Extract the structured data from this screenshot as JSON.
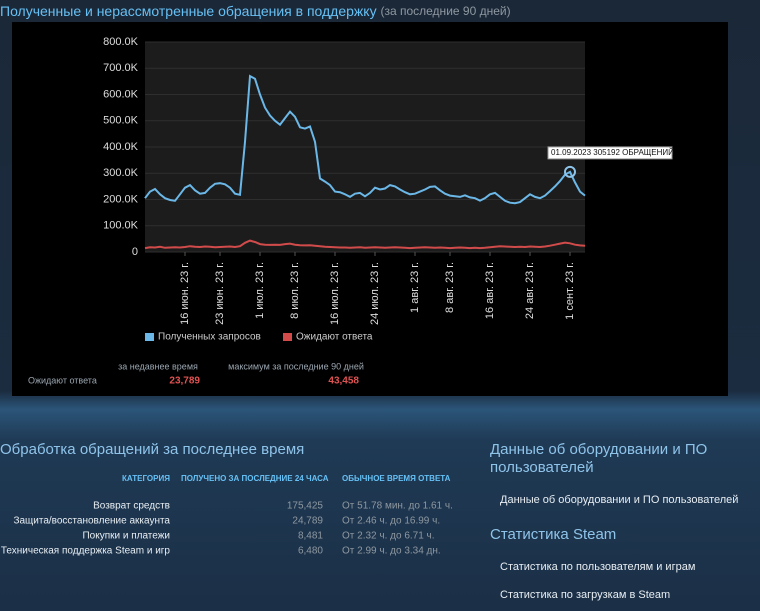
{
  "header": {
    "title": "Полученные и нерассмотренные обращения в поддержку",
    "subtitle": "(за последние 90 дней)"
  },
  "chart_data": {
    "type": "line",
    "x": [
      "2023-06-08",
      "2023-06-09",
      "2023-06-10",
      "2023-06-11",
      "2023-06-12",
      "2023-06-13",
      "2023-06-14",
      "2023-06-15",
      "2023-06-16",
      "2023-06-17",
      "2023-06-18",
      "2023-06-19",
      "2023-06-20",
      "2023-06-21",
      "2023-06-22",
      "2023-06-23",
      "2023-06-24",
      "2023-06-25",
      "2023-06-26",
      "2023-06-27",
      "2023-06-28",
      "2023-06-29",
      "2023-06-30",
      "2023-07-01",
      "2023-07-02",
      "2023-07-03",
      "2023-07-04",
      "2023-07-05",
      "2023-07-06",
      "2023-07-07",
      "2023-07-08",
      "2023-07-09",
      "2023-07-10",
      "2023-07-11",
      "2023-07-12",
      "2023-07-13",
      "2023-07-14",
      "2023-07-15",
      "2023-07-16",
      "2023-07-17",
      "2023-07-18",
      "2023-07-19",
      "2023-07-20",
      "2023-07-21",
      "2023-07-22",
      "2023-07-23",
      "2023-07-24",
      "2023-07-25",
      "2023-07-26",
      "2023-07-27",
      "2023-07-28",
      "2023-07-29",
      "2023-07-30",
      "2023-07-31",
      "2023-08-01",
      "2023-08-02",
      "2023-08-03",
      "2023-08-04",
      "2023-08-05",
      "2023-08-06",
      "2023-08-07",
      "2023-08-08",
      "2023-08-09",
      "2023-08-10",
      "2023-08-11",
      "2023-08-12",
      "2023-08-13",
      "2023-08-14",
      "2023-08-15",
      "2023-08-16",
      "2023-08-17",
      "2023-08-18",
      "2023-08-19",
      "2023-08-20",
      "2023-08-21",
      "2023-08-22",
      "2023-08-23",
      "2023-08-24",
      "2023-08-25",
      "2023-08-26",
      "2023-08-27",
      "2023-08-28",
      "2023-08-29",
      "2023-08-30",
      "2023-08-31",
      "2023-09-01",
      "2023-09-02",
      "2023-09-03",
      "2023-09-04"
    ],
    "series": [
      {
        "name": "Полученных запросов",
        "color": "#6bb8e8",
        "values": [
          205000,
          230000,
          240000,
          220000,
          205000,
          198000,
          195000,
          220000,
          245000,
          255000,
          235000,
          222000,
          225000,
          245000,
          260000,
          262000,
          258000,
          245000,
          222000,
          218000,
          420000,
          670000,
          660000,
          600000,
          550000,
          520000,
          500000,
          485000,
          510000,
          535000,
          515000,
          475000,
          470000,
          478000,
          420000,
          280000,
          268000,
          255000,
          230000,
          228000,
          220000,
          210000,
          222000,
          225000,
          212000,
          225000,
          245000,
          238000,
          242000,
          255000,
          250000,
          238000,
          228000,
          220000,
          222000,
          230000,
          238000,
          248000,
          250000,
          235000,
          222000,
          215000,
          212000,
          210000,
          216000,
          208000,
          205000,
          196000,
          205000,
          220000,
          225000,
          210000,
          195000,
          188000,
          186000,
          190000,
          205000,
          220000,
          210000,
          205000,
          215000,
          232000,
          250000,
          270000,
          295000,
          305192,
          265000,
          230000,
          215000
        ]
      },
      {
        "name": "Ожидают ответа",
        "color": "#d24b4b",
        "values": [
          15000,
          18000,
          17000,
          20000,
          16000,
          17000,
          18000,
          17000,
          19000,
          22000,
          20000,
          19000,
          21000,
          20000,
          18000,
          19000,
          20000,
          21000,
          19000,
          22000,
          35000,
          43458,
          38000,
          30000,
          28000,
          27000,
          28000,
          27000,
          30000,
          32000,
          28000,
          26000,
          25000,
          26000,
          24000,
          22000,
          20000,
          19000,
          18000,
          17000,
          17000,
          16000,
          17000,
          18000,
          16000,
          17000,
          18000,
          17000,
          16000,
          17000,
          18000,
          17000,
          16000,
          15000,
          16000,
          17000,
          18000,
          17000,
          16000,
          17000,
          16000,
          15000,
          16000,
          17000,
          16000,
          15000,
          16000,
          15000,
          16000,
          18000,
          20000,
          22000,
          21000,
          20000,
          19000,
          20000,
          19000,
          21000,
          20000,
          19000,
          21000,
          24000,
          28000,
          32000,
          36000,
          33000,
          28000,
          25000,
          23789
        ]
      }
    ],
    "xlim": [
      "2023-06-08",
      "2023-09-04"
    ],
    "xticks": [
      {
        "value": "2023-06-16",
        "label": "16 июн. 23 г."
      },
      {
        "value": "2023-06-23",
        "label": "23 июн. 23 г."
      },
      {
        "value": "2023-07-01",
        "label": "1 июл. 23 г."
      },
      {
        "value": "2023-07-08",
        "label": "8 июл. 23 г."
      },
      {
        "value": "2023-07-16",
        "label": "16 июл. 23 г."
      },
      {
        "value": "2023-07-24",
        "label": "24 июл. 23 г."
      },
      {
        "value": "2023-08-01",
        "label": "1 авг. 23 г."
      },
      {
        "value": "2023-08-08",
        "label": "8 авг. 23 г."
      },
      {
        "value": "2023-08-16",
        "label": "16 авг. 23 г."
      },
      {
        "value": "2023-08-24",
        "label": "24 авг. 23 г."
      },
      {
        "value": "2023-09-01",
        "label": "1 сент. 23 г."
      }
    ],
    "ylim": [
      0,
      800000
    ],
    "yticks": [
      0,
      {
        "value": 100000,
        "label": "100.0K"
      },
      {
        "value": 200000,
        "label": "200.0K"
      },
      {
        "value": 300000,
        "label": "300.0K"
      },
      {
        "value": 400000,
        "label": "400.0K"
      },
      {
        "value": 500000,
        "label": "500.0K"
      },
      {
        "value": 600000,
        "label": "600.0K"
      },
      {
        "value": 700000,
        "label": "700.0K"
      },
      {
        "value": 800000,
        "label": "800.0K"
      }
    ],
    "grid": true,
    "annotation": {
      "text": "01.09.2023 305192 ОБРАЩЕНИЙ",
      "x": "2023-09-01"
    }
  },
  "summary": {
    "col_recent": "за недавнее время",
    "col_max": "максимум за последние 90 дней",
    "row_label": "Ожидают ответа",
    "recent": "23,789",
    "max": "43,458"
  },
  "recent": {
    "title": "Обработка обращений за последнее время",
    "headers": [
      "КАТЕГОРИЯ",
      "ПОЛУЧЕНО ЗА ПОСЛЕДНИЕ 24 ЧАСА",
      "ОБЫЧНОЕ ВРЕМЯ ОТВЕТА"
    ],
    "rows": [
      [
        "Возврат средств",
        "175,425",
        "От 51.78 мин. до 1.61 ч."
      ],
      [
        "Защита/восстановление аккаунта",
        "24,789",
        "От 2.46 ч. до 16.99 ч."
      ],
      [
        "Покупки и платежи",
        "8,481",
        "От 2.32 ч. до 6.71 ч."
      ],
      [
        "Техническая поддержка Steam и игр",
        "6,480",
        "От 2.99 ч. до 3.34 дн."
      ]
    ]
  },
  "side": {
    "hw_title_1": "Данные об оборудовании и ПО",
    "hw_title_2": "пользователей",
    "hw_link": "Данные об оборудовании и ПО пользователей",
    "stats_title": "Статистика Steam",
    "stats_links": [
      "Статистика по пользователям и играм",
      "Статистика по загрузкам в Steam"
    ]
  }
}
